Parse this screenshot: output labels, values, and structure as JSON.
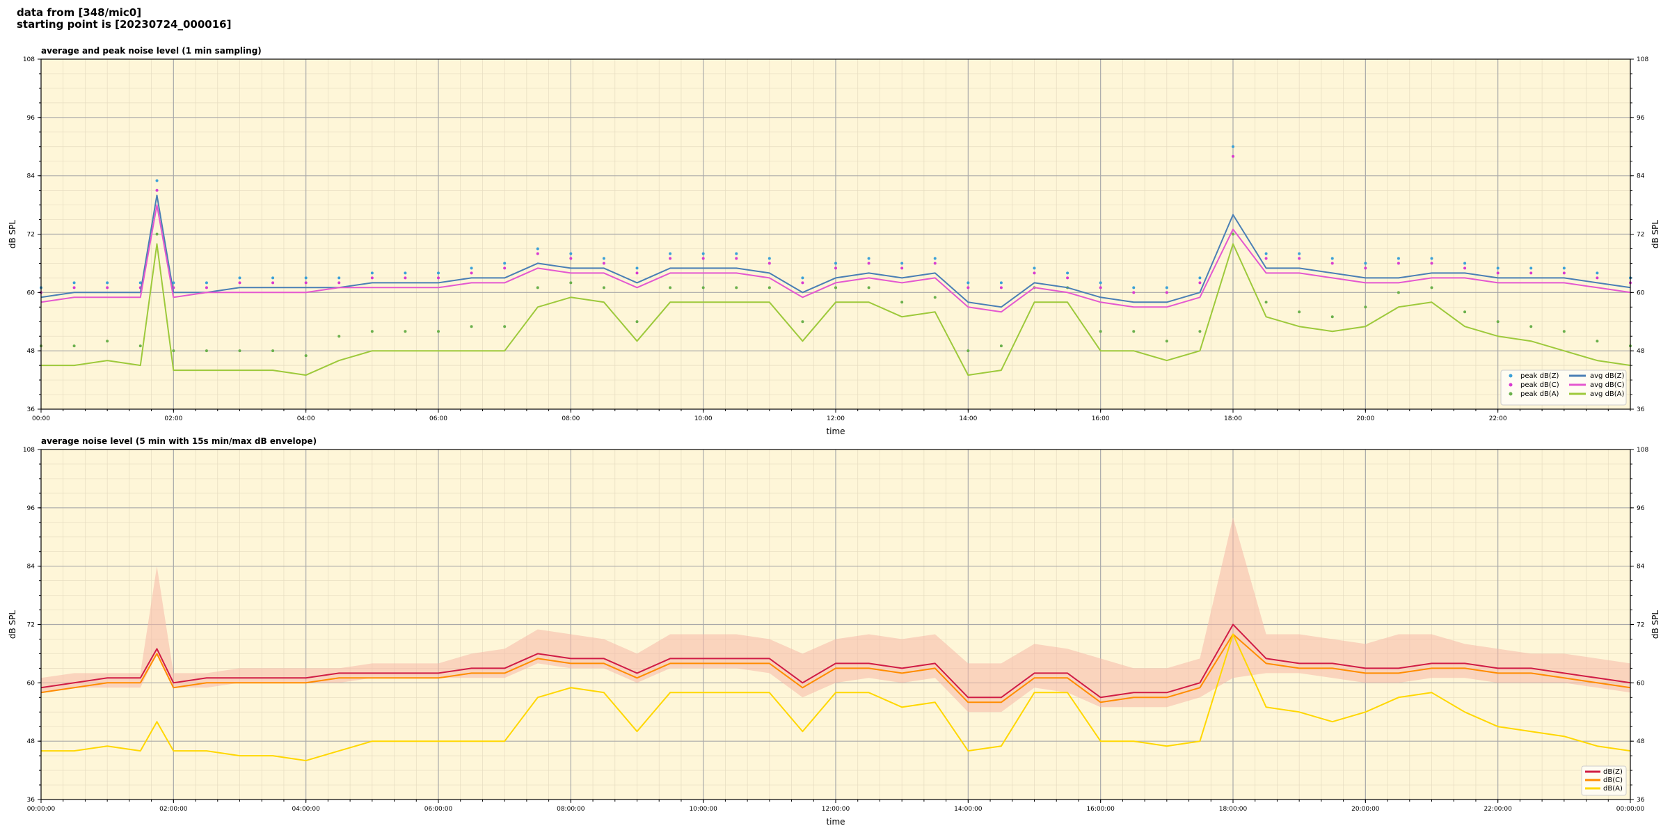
{
  "header": {
    "line1": "data from [348/mic0]",
    "line2": "starting point is [20230724_000016]"
  },
  "chart_data": [
    {
      "type": "line",
      "title": "average and peak noise level (1 min sampling)",
      "xlabel": "time",
      "ylabel": "dB SPL",
      "ylim": [
        36,
        108
      ],
      "yticks": [
        36,
        48,
        60,
        72,
        84,
        96,
        108
      ],
      "xlim_hours": [
        0,
        24
      ],
      "xtick_labels": [
        "00:00",
        "02:00",
        "04:00",
        "06:00",
        "08:00",
        "10:00",
        "12:00",
        "14:00",
        "16:00",
        "18:00",
        "20:00",
        "22:00"
      ],
      "grid": true,
      "legend_position": "lower-right",
      "x_hours": [
        0,
        0.5,
        1,
        1.5,
        1.75,
        2,
        2.5,
        3,
        3.5,
        4,
        4.5,
        5,
        5.5,
        6,
        6.5,
        7,
        7.5,
        8,
        8.5,
        9,
        9.5,
        10,
        10.5,
        11,
        11.5,
        12,
        12.5,
        13,
        13.5,
        14,
        14.5,
        15,
        15.5,
        16,
        16.5,
        17,
        17.5,
        18,
        18.5,
        19,
        19.5,
        20,
        20.5,
        21,
        21.5,
        22,
        22.5,
        23,
        23.5,
        24
      ],
      "series": [
        {
          "name": "avg dB(Z)",
          "kind": "line",
          "color": "#4a7fb5",
          "values": [
            59,
            60,
            60,
            60,
            80,
            60,
            60,
            61,
            61,
            61,
            61,
            62,
            62,
            62,
            63,
            63,
            66,
            65,
            65,
            62,
            65,
            65,
            65,
            64,
            60,
            63,
            64,
            63,
            64,
            58,
            57,
            62,
            61,
            59,
            58,
            58,
            60,
            76,
            65,
            65,
            64,
            63,
            63,
            64,
            64,
            63,
            63,
            63,
            62,
            61
          ]
        },
        {
          "name": "avg dB(C)",
          "kind": "line",
          "color": "#e458d0",
          "values": [
            58,
            59,
            59,
            59,
            78,
            59,
            60,
            60,
            60,
            60,
            61,
            61,
            61,
            61,
            62,
            62,
            65,
            64,
            64,
            61,
            64,
            64,
            64,
            63,
            59,
            62,
            63,
            62,
            63,
            57,
            56,
            61,
            60,
            58,
            57,
            57,
            59,
            73,
            64,
            64,
            63,
            62,
            62,
            63,
            63,
            62,
            62,
            62,
            61,
            60
          ]
        },
        {
          "name": "avg dB(A)",
          "kind": "line",
          "color": "#9dc93b",
          "values": [
            45,
            45,
            46,
            45,
            70,
            44,
            44,
            44,
            44,
            43,
            46,
            48,
            48,
            48,
            48,
            48,
            57,
            59,
            58,
            50,
            58,
            58,
            58,
            58,
            50,
            58,
            58,
            55,
            56,
            43,
            44,
            58,
            58,
            48,
            48,
            46,
            48,
            70,
            55,
            53,
            52,
            53,
            57,
            58,
            53,
            51,
            50,
            48,
            46,
            45
          ]
        },
        {
          "name": "peak dB(Z)",
          "kind": "scatter",
          "color": "#3aa0d8",
          "values": [
            61,
            62,
            62,
            62,
            83,
            62,
            62,
            63,
            63,
            63,
            63,
            64,
            64,
            64,
            65,
            66,
            69,
            68,
            67,
            65,
            68,
            68,
            68,
            67,
            63,
            66,
            67,
            66,
            67,
            62,
            62,
            65,
            64,
            62,
            61,
            61,
            63,
            90,
            68,
            68,
            67,
            66,
            67,
            67,
            66,
            65,
            65,
            65,
            64,
            63
          ]
        },
        {
          "name": "peak dB(C)",
          "kind": "scatter",
          "color": "#d83ad0",
          "values": [
            60,
            61,
            61,
            61,
            81,
            61,
            61,
            62,
            62,
            62,
            62,
            63,
            63,
            63,
            64,
            65,
            68,
            67,
            66,
            64,
            67,
            67,
            67,
            66,
            62,
            65,
            66,
            65,
            66,
            61,
            61,
            64,
            63,
            61,
            60,
            60,
            62,
            88,
            67,
            67,
            66,
            65,
            66,
            66,
            65,
            64,
            64,
            64,
            63,
            62
          ]
        },
        {
          "name": "peak dB(A)",
          "kind": "scatter",
          "color": "#6ab04c",
          "values": [
            49,
            49,
            50,
            49,
            72,
            48,
            48,
            48,
            48,
            47,
            51,
            52,
            52,
            52,
            53,
            53,
            61,
            62,
            61,
            54,
            61,
            61,
            61,
            61,
            54,
            61,
            61,
            58,
            59,
            48,
            49,
            61,
            61,
            52,
            52,
            50,
            52,
            72,
            58,
            56,
            55,
            57,
            60,
            61,
            56,
            54,
            53,
            52,
            50,
            49
          ]
        }
      ]
    },
    {
      "type": "line",
      "title": "average noise level (5 min with 15s min/max dB envelope)",
      "xlabel": "time",
      "ylabel": "dB SPL",
      "ylim": [
        36,
        108
      ],
      "yticks": [
        36,
        48,
        60,
        72,
        84,
        96,
        108
      ],
      "xlim_hours": [
        0,
        24
      ],
      "xtick_labels": [
        "00:00:00",
        "02:00:00",
        "04:00:00",
        "06:00:00",
        "08:00:00",
        "10:00:00",
        "12:00:00",
        "14:00:00",
        "16:00:00",
        "18:00:00",
        "20:00:00",
        "22:00:00",
        "00:00:00"
      ],
      "grid": true,
      "legend_position": "lower-right",
      "x_hours": [
        0,
        0.5,
        1,
        1.5,
        1.75,
        2,
        2.5,
        3,
        3.5,
        4,
        4.5,
        5,
        5.5,
        6,
        6.5,
        7,
        7.5,
        8,
        8.5,
        9,
        9.5,
        10,
        10.5,
        11,
        11.5,
        12,
        12.5,
        13,
        13.5,
        14,
        14.5,
        15,
        15.5,
        16,
        16.5,
        17,
        17.5,
        18,
        18.5,
        19,
        19.5,
        20,
        20.5,
        21,
        21.5,
        22,
        22.5,
        23,
        23.5,
        24
      ],
      "envelope": {
        "color": "#f5b8a8",
        "max": [
          61,
          62,
          62,
          62,
          84,
          62,
          62,
          63,
          63,
          63,
          63,
          64,
          64,
          64,
          66,
          67,
          71,
          70,
          69,
          66,
          70,
          70,
          70,
          69,
          66,
          69,
          70,
          69,
          70,
          64,
          64,
          68,
          67,
          65,
          63,
          63,
          65,
          94,
          70,
          70,
          69,
          68,
          70,
          70,
          68,
          67,
          66,
          66,
          65,
          64
        ],
        "min": [
          58,
          59,
          59,
          59,
          66,
          59,
          59,
          60,
          60,
          60,
          60,
          61,
          61,
          61,
          61,
          61,
          64,
          63,
          63,
          60,
          63,
          63,
          63,
          62,
          57,
          60,
          61,
          60,
          61,
          54,
          54,
          59,
          58,
          55,
          55,
          55,
          57,
          61,
          62,
          62,
          61,
          60,
          60,
          61,
          61,
          60,
          60,
          60,
          59,
          58
        ]
      },
      "series": [
        {
          "name": "dB(Z)",
          "color": "#d01c45",
          "values": [
            59,
            60,
            61,
            61,
            67,
            60,
            61,
            61,
            61,
            61,
            62,
            62,
            62,
            62,
            63,
            63,
            66,
            65,
            65,
            62,
            65,
            65,
            65,
            65,
            60,
            64,
            64,
            63,
            64,
            57,
            57,
            62,
            62,
            57,
            58,
            58,
            60,
            72,
            65,
            64,
            64,
            63,
            63,
            64,
            64,
            63,
            63,
            62,
            61,
            60
          ]
        },
        {
          "name": "dB(C)",
          "color": "#ff8c00",
          "values": [
            58,
            59,
            60,
            60,
            66,
            59,
            60,
            60,
            60,
            60,
            61,
            61,
            61,
            61,
            62,
            62,
            65,
            64,
            64,
            61,
            64,
            64,
            64,
            64,
            59,
            63,
            63,
            62,
            63,
            56,
            56,
            61,
            61,
            56,
            57,
            57,
            59,
            70,
            64,
            63,
            63,
            62,
            62,
            63,
            63,
            62,
            62,
            61,
            60,
            59
          ]
        },
        {
          "name": "dB(A)",
          "color": "#ffd700",
          "values": [
            46,
            46,
            47,
            46,
            52,
            46,
            46,
            45,
            45,
            44,
            46,
            48,
            48,
            48,
            48,
            48,
            57,
            59,
            58,
            50,
            58,
            58,
            58,
            58,
            50,
            58,
            58,
            55,
            56,
            46,
            47,
            58,
            58,
            48,
            48,
            47,
            48,
            70,
            55,
            54,
            52,
            54,
            57,
            58,
            54,
            51,
            50,
            49,
            47,
            46
          ]
        }
      ]
    }
  ]
}
